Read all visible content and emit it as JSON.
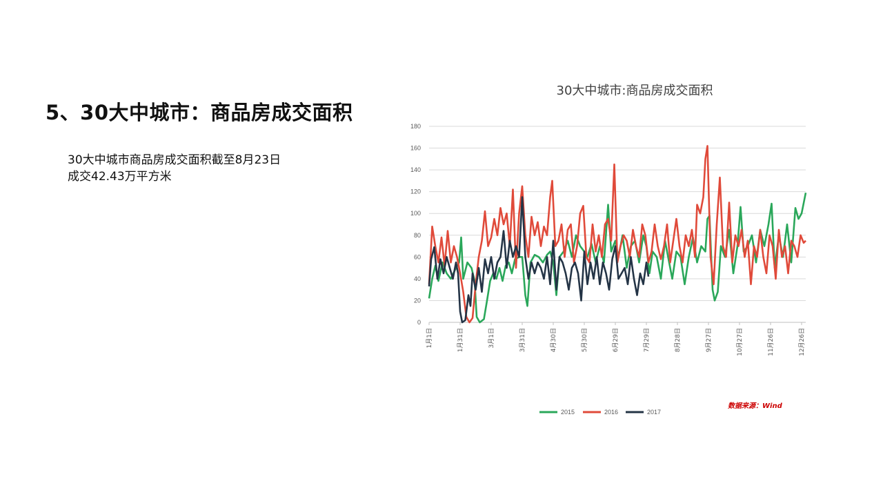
{
  "slide": {
    "title": "5、30大中城市：商品房成交面积",
    "note_line1": "30大中城市商品房成交面积截至8月23日",
    "note_line2": "成交42.43万平方米",
    "source": "数据来源：Wind"
  },
  "colors": {
    "2015": "#2aa75a",
    "2016": "#e04a3a",
    "2017": "#243446"
  },
  "chart_data": {
    "type": "line",
    "title": "30大中城市:商品房成交面积",
    "xlabel": "",
    "ylabel": "",
    "ylim": [
      0,
      180
    ],
    "yticks": [
      0,
      20,
      40,
      60,
      80,
      100,
      120,
      140,
      160,
      180
    ],
    "xtick_labels": [
      "1月1日",
      "1月31日",
      "3月1日",
      "3月31日",
      "4月30日",
      "5月30日",
      "6月29日",
      "7月29日",
      "8月28日",
      "9月27日",
      "10月27日",
      "11月26日",
      "12月26日"
    ],
    "xtick_days": [
      1,
      31,
      61,
      91,
      121,
      151,
      181,
      211,
      241,
      271,
      301,
      331,
      361
    ],
    "x_range": [
      1,
      365
    ],
    "grid": true,
    "legend": "bottom",
    "series": [
      {
        "name": "2015",
        "points": [
          [
            1,
            22
          ],
          [
            4,
            40
          ],
          [
            7,
            52
          ],
          [
            10,
            38
          ],
          [
            14,
            55
          ],
          [
            18,
            45
          ],
          [
            22,
            40
          ],
          [
            26,
            48
          ],
          [
            30,
            55
          ],
          [
            32,
            78
          ],
          [
            34,
            40
          ],
          [
            38,
            55
          ],
          [
            42,
            50
          ],
          [
            45,
            38
          ],
          [
            47,
            5
          ],
          [
            50,
            0
          ],
          [
            54,
            3
          ],
          [
            57,
            20
          ],
          [
            60,
            38
          ],
          [
            63,
            45
          ],
          [
            66,
            40
          ],
          [
            69,
            50
          ],
          [
            72,
            38
          ],
          [
            75,
            52
          ],
          [
            78,
            55
          ],
          [
            81,
            45
          ],
          [
            84,
            58
          ],
          [
            88,
            60
          ],
          [
            91,
            60
          ],
          [
            94,
            25
          ],
          [
            96,
            15
          ],
          [
            99,
            55
          ],
          [
            103,
            62
          ],
          [
            107,
            60
          ],
          [
            111,
            55
          ],
          [
            115,
            62
          ],
          [
            118,
            65
          ],
          [
            121,
            55
          ],
          [
            124,
            25
          ],
          [
            127,
            60
          ],
          [
            131,
            65
          ],
          [
            135,
            75
          ],
          [
            139,
            60
          ],
          [
            143,
            80
          ],
          [
            147,
            70
          ],
          [
            151,
            65
          ],
          [
            154,
            60
          ],
          [
            158,
            72
          ],
          [
            162,
            55
          ],
          [
            166,
            70
          ],
          [
            170,
            55
          ],
          [
            174,
            108
          ],
          [
            177,
            65
          ],
          [
            181,
            75
          ],
          [
            184,
            60
          ],
          [
            188,
            80
          ],
          [
            192,
            50
          ],
          [
            196,
            70
          ],
          [
            200,
            75
          ],
          [
            204,
            55
          ],
          [
            208,
            80
          ],
          [
            211,
            70
          ],
          [
            214,
            45
          ],
          [
            217,
            65
          ],
          [
            221,
            60
          ],
          [
            225,
            40
          ],
          [
            229,
            75
          ],
          [
            233,
            55
          ],
          [
            236,
            40
          ],
          [
            240,
            65
          ],
          [
            244,
            60
          ],
          [
            248,
            35
          ],
          [
            252,
            60
          ],
          [
            256,
            78
          ],
          [
            260,
            55
          ],
          [
            264,
            70
          ],
          [
            268,
            65
          ],
          [
            270,
            95
          ],
          [
            272,
            98
          ],
          [
            275,
            30
          ],
          [
            277,
            20
          ],
          [
            280,
            28
          ],
          [
            283,
            70
          ],
          [
            287,
            60
          ],
          [
            291,
            85
          ],
          [
            295,
            45
          ],
          [
            299,
            70
          ],
          [
            302,
            106
          ],
          [
            305,
            65
          ],
          [
            309,
            70
          ],
          [
            313,
            80
          ],
          [
            317,
            55
          ],
          [
            321,
            85
          ],
          [
            325,
            70
          ],
          [
            329,
            90
          ],
          [
            332,
            109
          ],
          [
            335,
            50
          ],
          [
            339,
            80
          ],
          [
            343,
            60
          ],
          [
            347,
            90
          ],
          [
            351,
            55
          ],
          [
            355,
            105
          ],
          [
            358,
            95
          ],
          [
            361,
            100
          ],
          [
            365,
            119
          ]
        ]
      },
      {
        "name": "2016",
        "points": [
          [
            1,
            35
          ],
          [
            4,
            88
          ],
          [
            7,
            70
          ],
          [
            10,
            55
          ],
          [
            13,
            78
          ],
          [
            16,
            52
          ],
          [
            19,
            84
          ],
          [
            22,
            55
          ],
          [
            25,
            70
          ],
          [
            28,
            60
          ],
          [
            31,
            45
          ],
          [
            34,
            28
          ],
          [
            37,
            5
          ],
          [
            40,
            0
          ],
          [
            43,
            4
          ],
          [
            46,
            35
          ],
          [
            49,
            60
          ],
          [
            52,
            75
          ],
          [
            55,
            102
          ],
          [
            58,
            70
          ],
          [
            61,
            78
          ],
          [
            64,
            95
          ],
          [
            67,
            80
          ],
          [
            70,
            105
          ],
          [
            73,
            90
          ],
          [
            76,
            100
          ],
          [
            79,
            70
          ],
          [
            82,
            122
          ],
          [
            85,
            50
          ],
          [
            88,
            100
          ],
          [
            91,
            125
          ],
          [
            94,
            80
          ],
          [
            97,
            60
          ],
          [
            100,
            97
          ],
          [
            103,
            80
          ],
          [
            106,
            92
          ],
          [
            109,
            70
          ],
          [
            112,
            88
          ],
          [
            115,
            80
          ],
          [
            118,
            115
          ],
          [
            120,
            130
          ],
          [
            123,
            70
          ],
          [
            126,
            75
          ],
          [
            129,
            90
          ],
          [
            132,
            60
          ],
          [
            135,
            85
          ],
          [
            138,
            90
          ],
          [
            141,
            55
          ],
          [
            144,
            70
          ],
          [
            147,
            100
          ],
          [
            150,
            107
          ],
          [
            153,
            60
          ],
          [
            156,
            55
          ],
          [
            159,
            90
          ],
          [
            162,
            65
          ],
          [
            165,
            80
          ],
          [
            168,
            60
          ],
          [
            171,
            90
          ],
          [
            174,
            95
          ],
          [
            177,
            75
          ],
          [
            180,
            145
          ],
          [
            183,
            55
          ],
          [
            186,
            70
          ],
          [
            189,
            80
          ],
          [
            192,
            75
          ],
          [
            195,
            60
          ],
          [
            198,
            85
          ],
          [
            201,
            70
          ],
          [
            204,
            60
          ],
          [
            207,
            90
          ],
          [
            210,
            80
          ],
          [
            213,
            55
          ],
          [
            216,
            65
          ],
          [
            219,
            90
          ],
          [
            222,
            70
          ],
          [
            225,
            58
          ],
          [
            228,
            70
          ],
          [
            231,
            90
          ],
          [
            234,
            55
          ],
          [
            237,
            75
          ],
          [
            240,
            95
          ],
          [
            243,
            70
          ],
          [
            246,
            55
          ],
          [
            249,
            80
          ],
          [
            252,
            70
          ],
          [
            255,
            85
          ],
          [
            258,
            60
          ],
          [
            260,
            108
          ],
          [
            263,
            100
          ],
          [
            266,
            115
          ],
          [
            268,
            150
          ],
          [
            270,
            162
          ],
          [
            273,
            60
          ],
          [
            276,
            35
          ],
          [
            279,
            90
          ],
          [
            282,
            133
          ],
          [
            285,
            70
          ],
          [
            288,
            60
          ],
          [
            291,
            110
          ],
          [
            294,
            55
          ],
          [
            297,
            80
          ],
          [
            300,
            70
          ],
          [
            303,
            85
          ],
          [
            306,
            60
          ],
          [
            309,
            75
          ],
          [
            312,
            35
          ],
          [
            315,
            70
          ],
          [
            318,
            60
          ],
          [
            321,
            85
          ],
          [
            324,
            60
          ],
          [
            327,
            45
          ],
          [
            330,
            80
          ],
          [
            333,
            70
          ],
          [
            336,
            40
          ],
          [
            339,
            85
          ],
          [
            342,
            60
          ],
          [
            345,
            70
          ],
          [
            348,
            45
          ],
          [
            351,
            75
          ],
          [
            354,
            70
          ],
          [
            357,
            60
          ],
          [
            360,
            80
          ],
          [
            363,
            73
          ],
          [
            365,
            75
          ]
        ]
      },
      {
        "name": "2017",
        "points": [
          [
            1,
            33
          ],
          [
            3,
            58
          ],
          [
            6,
            69
          ],
          [
            9,
            40
          ],
          [
            12,
            58
          ],
          [
            15,
            45
          ],
          [
            18,
            60
          ],
          [
            21,
            50
          ],
          [
            24,
            40
          ],
          [
            27,
            55
          ],
          [
            29,
            45
          ],
          [
            31,
            10
          ],
          [
            33,
            0
          ],
          [
            36,
            2
          ],
          [
            39,
            25
          ],
          [
            41,
            15
          ],
          [
            43,
            45
          ],
          [
            46,
            30
          ],
          [
            49,
            50
          ],
          [
            52,
            28
          ],
          [
            55,
            58
          ],
          [
            58,
            45
          ],
          [
            61,
            60
          ],
          [
            64,
            40
          ],
          [
            67,
            55
          ],
          [
            70,
            60
          ],
          [
            73,
            84
          ],
          [
            76,
            50
          ],
          [
            79,
            75
          ],
          [
            82,
            60
          ],
          [
            85,
            70
          ],
          [
            88,
            60
          ],
          [
            91,
            115
          ],
          [
            94,
            60
          ],
          [
            97,
            40
          ],
          [
            100,
            55
          ],
          [
            103,
            45
          ],
          [
            106,
            55
          ],
          [
            109,
            50
          ],
          [
            112,
            40
          ],
          [
            115,
            60
          ],
          [
            118,
            35
          ],
          [
            121,
            75
          ],
          [
            124,
            30
          ],
          [
            127,
            60
          ],
          [
            130,
            55
          ],
          [
            133,
            45
          ],
          [
            136,
            30
          ],
          [
            139,
            50
          ],
          [
            142,
            55
          ],
          [
            145,
            45
          ],
          [
            148,
            20
          ],
          [
            151,
            65
          ],
          [
            154,
            35
          ],
          [
            157,
            55
          ],
          [
            160,
            40
          ],
          [
            163,
            60
          ],
          [
            166,
            35
          ],
          [
            169,
            55
          ],
          [
            172,
            45
          ],
          [
            175,
            30
          ],
          [
            178,
            58
          ],
          [
            181,
            70
          ],
          [
            184,
            40
          ],
          [
            187,
            45
          ],
          [
            190,
            50
          ],
          [
            193,
            35
          ],
          [
            196,
            60
          ],
          [
            199,
            40
          ],
          [
            202,
            25
          ],
          [
            205,
            45
          ],
          [
            208,
            35
          ],
          [
            211,
            55
          ],
          [
            213,
            42
          ]
        ]
      }
    ]
  }
}
